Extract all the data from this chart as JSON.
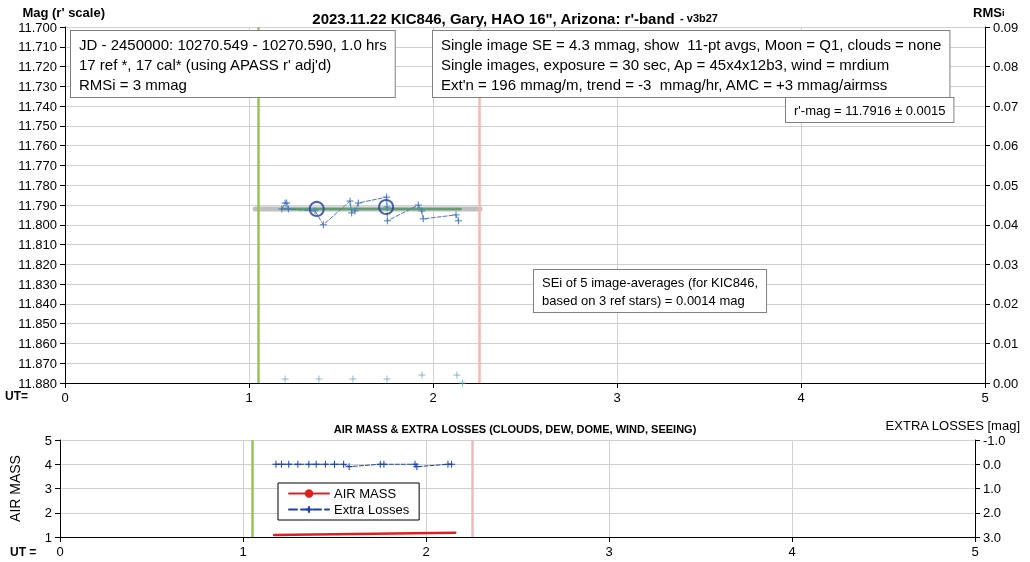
{
  "chart_data": [
    {
      "type": "line",
      "title": "2023.11.22 KIC846, Gary, HAO 16\", Arizona: r'-band",
      "subtitle": "- v3b27",
      "xlabel": "UT=",
      "ylabel": "Mag (r' scale)",
      "y2label": "RMS$_{i}$",
      "annotations": [
        "JD - 2450000: 10270.549 - 10270.590, 1.0 hrs\n17 ref *, 17 cal* (using APASS r' adj'd)\nRMSi = 3 mmag",
        "Single image SE = 4.3 mmag, show  11-pt avgs, Moon = Q1, clouds = none\nSingle images, exposure = 30 sec, Ap = 45x4x12b3, wind = mrdium\nExt'n = 196 mmag/m, trend = -3  mmag/hr, AMC = +3 mmag/airmss",
        "r'-mag = 11.7916 ± 0.0015",
        "SEi of 5 image-averages (for KIC846,\nbased on 3 ref stars) = 0.0014 mag"
      ],
      "xlim": [
        0,
        5
      ],
      "xticks": [
        0,
        1,
        2,
        3,
        4,
        5
      ],
      "ylim": [
        11.88,
        11.7
      ],
      "yticks": [
        {
          "value": 11.7,
          "label": "11.700"
        },
        {
          "value": 11.71,
          "label": "11.710"
        },
        {
          "value": 11.72,
          "label": "11.720"
        },
        {
          "value": 11.73,
          "label": "11.730"
        },
        {
          "value": 11.74,
          "label": "11.740"
        },
        {
          "value": 11.75,
          "label": "11.750"
        },
        {
          "value": 11.76,
          "label": "11.760"
        },
        {
          "value": 11.77,
          "label": "11.770"
        },
        {
          "value": 11.78,
          "label": "11.780"
        },
        {
          "value": 11.79,
          "label": "11.790"
        },
        {
          "value": 11.8,
          "label": "11.800"
        },
        {
          "value": 11.81,
          "label": "11.810"
        },
        {
          "value": 11.82,
          "label": "11.820"
        },
        {
          "value": 11.83,
          "label": "11.830"
        },
        {
          "value": 11.84,
          "label": "11.840"
        },
        {
          "value": 11.85,
          "label": "11.850"
        },
        {
          "value": 11.86,
          "label": "11.860"
        },
        {
          "value": 11.87,
          "label": "11.870"
        },
        {
          "value": 11.88,
          "label": "11.880"
        }
      ],
      "y2lim": [
        0,
        0.09
      ],
      "y2ticks": [
        {
          "value": 0,
          "label": "0.00"
        },
        {
          "value": 0.01,
          "label": "0.01"
        },
        {
          "value": 0.02,
          "label": "0.02"
        },
        {
          "value": 0.03,
          "label": "0.03"
        },
        {
          "value": 0.04,
          "label": "0.04"
        },
        {
          "value": 0.05,
          "label": "0.05"
        },
        {
          "value": 0.06,
          "label": "0.06"
        },
        {
          "value": 0.07,
          "label": "0.07"
        },
        {
          "value": 0.08,
          "label": "0.08"
        },
        {
          "value": 0.09,
          "label": "0.09"
        }
      ],
      "grid": true,
      "legend": false,
      "ref_lines": [
        {
          "axis": "x",
          "value": 1.054,
          "color": "#92c84c"
        },
        {
          "axis": "x",
          "value": 2.25,
          "color": "#f5b8b8"
        }
      ],
      "series": [
        {
          "type": "line",
          "color": "#c0c0c0",
          "marker": "none",
          "line_style": "solid",
          "x": [
            1.033,
            2.255
          ],
          "values": [
            11.792,
            11.792
          ]
        },
        {
          "type": "line",
          "color": "#5fa070",
          "marker": "none",
          "line_style": "solid",
          "x": [
            1.178,
            2.15
          ],
          "values": [
            11.792,
            11.792
          ]
        },
        {
          "type": "line",
          "color": "#4a78c0",
          "marker": "cross",
          "line_style": "dashed",
          "x": [
            1.178,
            1.196,
            1.205,
            1.214,
            1.359,
            1.404,
            1.549,
            1.558,
            1.576,
            1.594,
            1.748,
            1.75,
            1.752,
            1.92,
            1.939,
            1.947,
            2.125,
            2.138
          ],
          "values": [
            11.792,
            11.789,
            11.789,
            11.792,
            11.793,
            11.8,
            11.788,
            11.794,
            11.793,
            11.789,
            11.786,
            11.791,
            11.798,
            11.79,
            11.793,
            11.797,
            11.795,
            11.798
          ]
        },
        {
          "type": "scatter",
          "color": "#1f3fa0",
          "marker": "circle",
          "x": [
            1.368,
            1.745
          ],
          "values": [
            11.792,
            11.791
          ]
        },
        {
          "type": "scatter",
          "color": "#6aaac0",
          "marker": "cross",
          "axis": "y2",
          "x": [
            1.196,
            1.38,
            1.565,
            1.75,
            1.94,
            2.13,
            2.16
          ],
          "values": [
            0.001,
            0.001,
            0.001,
            0.001,
            0.002,
            0.002,
            0.0
          ]
        }
      ]
    },
    {
      "type": "line",
      "title": "AIR MASS & EXTRA LOSSES (CLOUDS, DEW, DOME, WIND, SEEING)",
      "xlabel": "UT =",
      "ylabel": "AIR MASS",
      "y2label": "EXTRA LOSSES [mag]",
      "xlim": [
        0,
        5
      ],
      "xticks": [
        0,
        1,
        2,
        3,
        4,
        5
      ],
      "ylim": [
        1,
        5
      ],
      "yticks": [
        1,
        2,
        3,
        4,
        5
      ],
      "y2lim": [
        3.0,
        -1.0
      ],
      "y2ticks": [
        {
          "value": -1,
          "label": "-1.0"
        },
        {
          "value": 0,
          "label": "0.0"
        },
        {
          "value": 1,
          "label": "1.0"
        },
        {
          "value": 2,
          "label": "2.0"
        },
        {
          "value": 3,
          "label": "3.0"
        }
      ],
      "grid": true,
      "legend": "bottom left",
      "ref_lines": [
        {
          "axis": "x",
          "value": 1.05,
          "color": "#92c84c"
        },
        {
          "axis": "x",
          "value": 2.25,
          "color": "#f5b8b8"
        }
      ],
      "series": [
        {
          "type": "line",
          "name": "AIR MASS",
          "color": "#e02020",
          "marker": "none",
          "line_style": "solid",
          "x": [
            1.17,
            1.6,
            2.16
          ],
          "values": [
            1.08,
            1.12,
            1.18
          ]
        },
        {
          "type": "line",
          "name": "Extra Losses",
          "color": "#1a3fb0",
          "marker": "cross",
          "line_style": "dashed",
          "axis": "y2",
          "x": [
            1.18,
            1.21,
            1.25,
            1.3,
            1.36,
            1.4,
            1.45,
            1.5,
            1.55,
            1.58,
            1.75,
            1.77,
            1.94,
            1.95,
            2.12,
            2.14
          ],
          "values": [
            0.0,
            0.0,
            0.0,
            0.0,
            0.0,
            0.0,
            0.0,
            0.0,
            0.0,
            0.1,
            0.0,
            0.0,
            0.0,
            0.1,
            0.0,
            0.0
          ]
        }
      ]
    }
  ]
}
